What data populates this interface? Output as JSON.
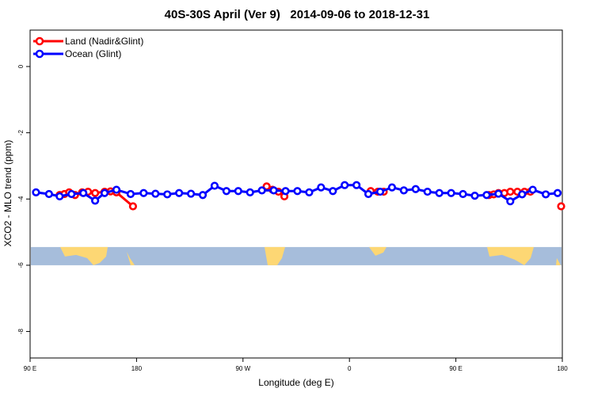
{
  "chart_data": {
    "type": "line",
    "title": "40S-30S April (Ver 9)   2014-09-06 to 2018-12-31",
    "xlabel": "Longitude (deg E)",
    "ylabel": "XCO2 - MLO trend (ppm)",
    "x_ticks": [
      {
        "pos": 0,
        "label": "90 E"
      },
      {
        "pos": 90,
        "label": "180"
      },
      {
        "pos": 180,
        "label": "90 W"
      },
      {
        "pos": 270,
        "label": "0"
      },
      {
        "pos": 360,
        "label": "90 E"
      },
      {
        "pos": 450,
        "label": "180"
      }
    ],
    "xlim": [
      0,
      450
    ],
    "ylim": [
      -8.8,
      1.1
    ],
    "y_ticks": [
      0,
      -2,
      -4,
      -6,
      -8
    ],
    "legend": "top-left",
    "map_band": {
      "ylim": [
        -6.0,
        -5.45
      ],
      "ocean_color": "#a6bddb",
      "land_color": "#fdd774"
    },
    "series": [
      {
        "name": "Land (Nadir&Glint)",
        "color": "#ff0000",
        "segments": [
          {
            "x": [
              25,
              29,
              33,
              38,
              44,
              49,
              55,
              63,
              68,
              73,
              87
            ],
            "y": [
              -3.88,
              -3.85,
              -3.8,
              -3.88,
              -3.8,
              -3.78,
              -3.82,
              -3.78,
              -3.77,
              -3.8,
              -4.22
            ]
          },
          {
            "x": [
              200,
              205,
              210,
              215
            ],
            "y": [
              -3.62,
              -3.72,
              -3.78,
              -3.92
            ]
          },
          {
            "x": [
              288,
              294,
              299
            ],
            "y": [
              -3.76,
              -3.78,
              -3.78
            ]
          },
          {
            "x": [
              388,
              392,
              396,
              401,
              406,
              412,
              418,
              423
            ],
            "y": [
              -3.88,
              -3.86,
              -3.82,
              -3.82,
              -3.78,
              -3.78,
              -3.78,
              -3.78
            ]
          },
          {
            "x": [
              449
            ],
            "y": [
              -4.22
            ]
          }
        ]
      },
      {
        "name": "Ocean (Glint)",
        "color": "#0000ff",
        "segments": [
          {
            "x": [
              5,
              16,
              25,
              35,
              45,
              55,
              63,
              73,
              85,
              96,
              106,
              116,
              126,
              136,
              146,
              156,
              166,
              176,
              186,
              196,
              206,
              216,
              226,
              236,
              246,
              256,
              266,
              276,
              286,
              296,
              306,
              316,
              326,
              336,
              346,
              356,
              366,
              376,
              386,
              396,
              406,
              416,
              425,
              436,
              446
            ],
            "y": [
              -3.8,
              -3.85,
              -3.92,
              -3.85,
              -3.82,
              -4.05,
              -3.82,
              -3.72,
              -3.85,
              -3.82,
              -3.84,
              -3.86,
              -3.82,
              -3.84,
              -3.88,
              -3.6,
              -3.76,
              -3.76,
              -3.8,
              -3.74,
              -3.74,
              -3.76,
              -3.76,
              -3.8,
              -3.65,
              -3.76,
              -3.58,
              -3.58,
              -3.85,
              -3.78,
              -3.65,
              -3.74,
              -3.7,
              -3.78,
              -3.82,
              -3.82,
              -3.85,
              -3.9,
              -3.88,
              -3.84,
              -4.07,
              -3.86,
              -3.72,
              -3.86,
              -3.82
            ]
          }
        ]
      }
    ]
  }
}
